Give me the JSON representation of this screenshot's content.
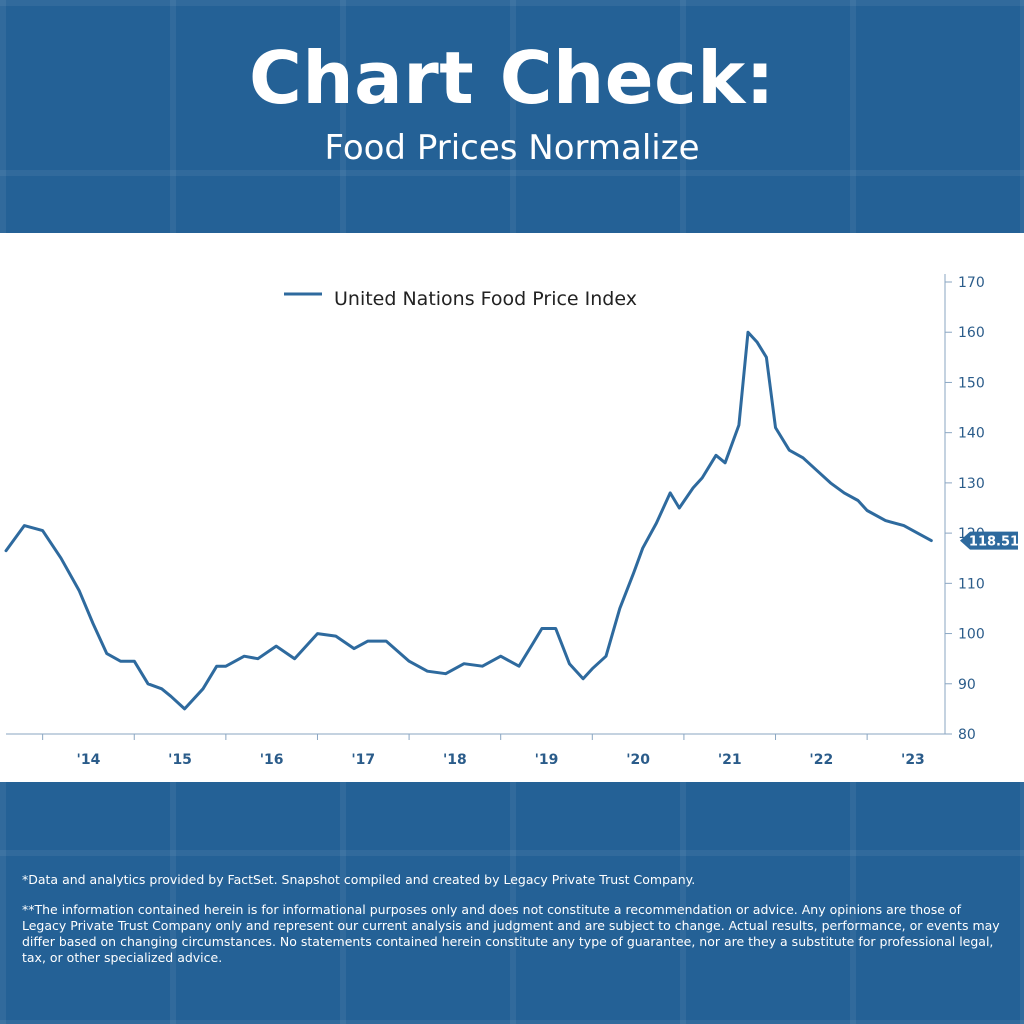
{
  "header": {
    "title": "Chart Check:",
    "subtitle": "Food Prices Normalize"
  },
  "colors": {
    "background": "#246196",
    "line": "#2e6a9e",
    "axis": "#8aa6c2",
    "label": "#2b5c8a",
    "badge": "#2e6a9e"
  },
  "chart_data": {
    "type": "line",
    "title": "",
    "legend": {
      "label": "United Nations Food Price Index",
      "position": "top-left"
    },
    "xlabel": "",
    "ylabel": "",
    "ylim": [
      80,
      170
    ],
    "y_ticks": [
      "170",
      "160",
      "150",
      "140",
      "130",
      "120",
      "110",
      "100",
      "90",
      "80"
    ],
    "xlim": [
      2013.6,
      2023.85
    ],
    "x_ticks": [
      "'14",
      "'15",
      "'16",
      "'17",
      "'18",
      "'19",
      "'20",
      "'21",
      "'22",
      "'23"
    ],
    "last_value_label": "118.51",
    "series": [
      {
        "name": "United Nations Food Price Index",
        "x": [
          2013.6,
          2013.8,
          2014.0,
          2014.2,
          2014.4,
          2014.55,
          2014.7,
          2014.85,
          2015.0,
          2015.15,
          2015.3,
          2015.4,
          2015.55,
          2015.75,
          2015.9,
          2016.0,
          2016.2,
          2016.35,
          2016.55,
          2016.75,
          2017.0,
          2017.2,
          2017.4,
          2017.55,
          2017.75,
          2018.0,
          2018.2,
          2018.4,
          2018.6,
          2018.8,
          2019.0,
          2019.2,
          2019.35,
          2019.45,
          2019.6,
          2019.75,
          2019.9,
          2020.0,
          2020.15,
          2020.3,
          2020.45,
          2020.55,
          2020.7,
          2020.85,
          2020.95,
          2021.1,
          2021.2,
          2021.35,
          2021.45,
          2021.6,
          2021.7,
          2021.8,
          2021.9,
          2022.0,
          2022.15,
          2022.3,
          2022.45,
          2022.6,
          2022.75,
          2022.9,
          2023.0,
          2023.2,
          2023.4,
          2023.55,
          2023.7
        ],
        "values": [
          116.5,
          121.5,
          120.5,
          115.0,
          108.5,
          102.0,
          96.0,
          94.5,
          94.5,
          90.0,
          89.0,
          87.5,
          85.0,
          89.0,
          93.5,
          93.5,
          95.5,
          95.0,
          97.5,
          95.0,
          100.0,
          99.5,
          97.0,
          98.5,
          98.5,
          94.5,
          92.5,
          92.0,
          94.0,
          93.5,
          95.5,
          93.5,
          98.0,
          101.0,
          101.0,
          94.0,
          91.0,
          93.0,
          95.5,
          105.0,
          112.0,
          117.0,
          122.0,
          128.0,
          125.0,
          129.0,
          131.0,
          135.5,
          134.0,
          141.5,
          160.0,
          158.0,
          155.0,
          141.0,
          136.5,
          135.0,
          132.5,
          130.0,
          128.0,
          126.5,
          124.5,
          122.5,
          121.5,
          120.0,
          118.51
        ]
      }
    ]
  },
  "footer": {
    "note1": "*Data and analytics provided by FactSet. Snapshot compiled and created by Legacy Private Trust Company.",
    "note2": "**The information contained herein is for informational purposes only and does not constitute a recommendation or advice. Any opinions are those of Legacy Private Trust Company only and represent our current analysis and judgment and are subject to change. Actual results, performance, or events may differ based on changing circumstances. No statements contained herein constitute any type of guarantee, nor are they a substitute for professional legal, tax, or other specialized advice."
  }
}
